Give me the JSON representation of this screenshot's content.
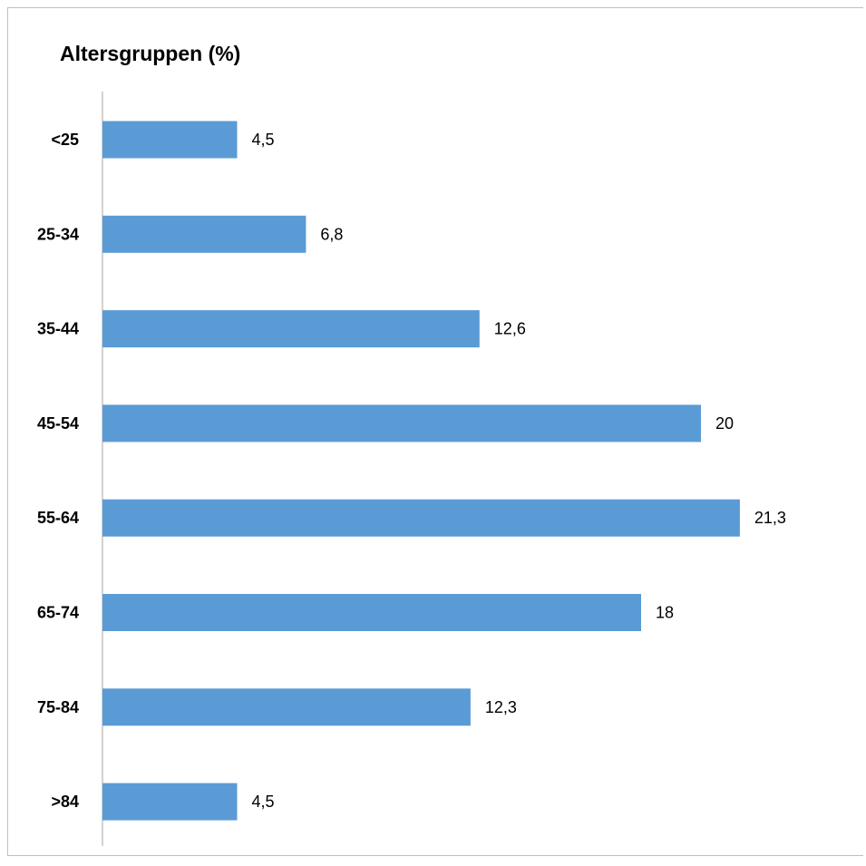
{
  "chart_data": {
    "type": "bar",
    "orientation": "horizontal",
    "title": "Altersgruppen (%)",
    "categories": [
      "<25",
      "25-34",
      "35-44",
      "45-54",
      "55-64",
      "65-74",
      "75-84",
      ">84"
    ],
    "values": [
      4.5,
      6.8,
      12.6,
      20,
      21.3,
      18,
      12.3,
      4.5
    ],
    "value_labels": [
      "4,5",
      "6,8",
      "12,6",
      "20",
      "21,3",
      "18",
      "12,3",
      "4,5"
    ],
    "xlim": [
      0,
      24
    ],
    "grid": false,
    "bar_color": "#5b9bd5",
    "axis_color": "#a6a6a6"
  }
}
